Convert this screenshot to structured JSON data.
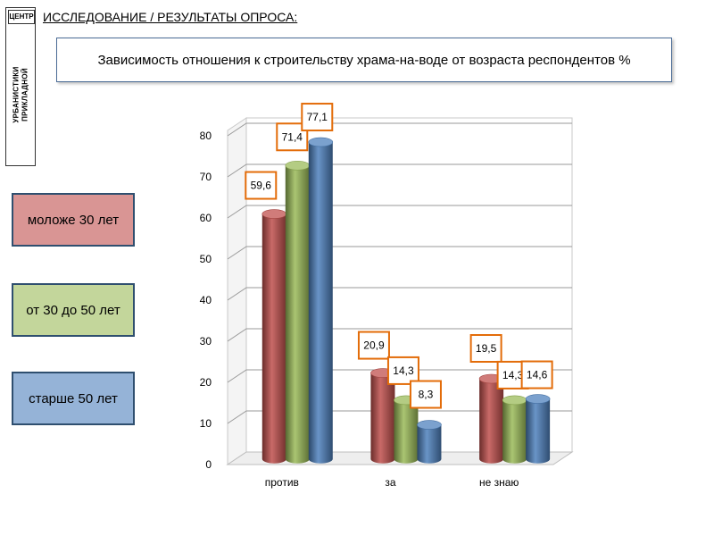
{
  "logo": {
    "top_text": "ЦЕНТР",
    "line1": "УРБАНИСТИКИ",
    "line2": "ПРИКЛАДНОЙ"
  },
  "header": "ИССЛЕДОВАНИЕ / РЕЗУЛЬТАТЫ ОПРОСА:",
  "legend": [
    {
      "label": "моложе 30 лет",
      "color": "#d99594"
    },
    {
      "label": "от 30 до 50 лет",
      "color": "#c3d69b"
    },
    {
      "label": "старше 50 лет",
      "color": "#95b3d7"
    }
  ],
  "chart_data": {
    "type": "bar",
    "title": "Зависимость отношения к строительству храма-на-воде от возраста респондентов  %",
    "categories": [
      "против",
      "за",
      "не знаю"
    ],
    "series": [
      {
        "name": "моложе 30 лет",
        "values": [
          59.6,
          20.9,
          19.5
        ],
        "color": "#c0504d"
      },
      {
        "name": "от 30 до 50 лет",
        "values": [
          71.4,
          14.3,
          14.3
        ],
        "color": "#9bbb59"
      },
      {
        "name": "старше 50 лет",
        "values": [
          77.1,
          8.3,
          14.6
        ],
        "color": "#4f81bd"
      }
    ],
    "data_labels": [
      [
        "59,6",
        "20,9",
        "19,5"
      ],
      [
        "71,4",
        "14,3",
        "14,3"
      ],
      [
        "77,1",
        "8,3",
        "14,6"
      ]
    ],
    "yticks": [
      0,
      10,
      20,
      30,
      40,
      50,
      60,
      70,
      80
    ],
    "ylim": [
      0,
      80
    ],
    "grid": true,
    "legend_position": "left",
    "label_border_color": "#e36c09"
  }
}
